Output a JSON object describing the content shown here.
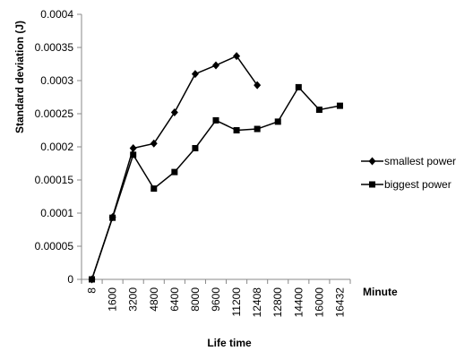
{
  "chart_data": {
    "type": "line",
    "title": "",
    "xlabel": "Life time",
    "ylabel": "Standard deviation (J)",
    "x_unit_label": "Minute",
    "categories": [
      "8",
      "1600",
      "3200",
      "4800",
      "6400",
      "8000",
      "9600",
      "11200",
      "12408",
      "12800",
      "14400",
      "16000",
      "16432"
    ],
    "ylim": [
      0,
      0.0004
    ],
    "yticks": [
      "0",
      "0.00005",
      "0.0001",
      "0.00015",
      "0.0002",
      "0.00025",
      "0.0003",
      "0.00035",
      "0.0004"
    ],
    "grid": false,
    "legend_position": "right",
    "series": [
      {
        "name": "smallest power",
        "marker": "diamond",
        "color": "#000000",
        "values": [
          0,
          9.4e-05,
          0.000198,
          0.000205,
          0.000252,
          0.00031,
          0.000323,
          0.000337,
          0.000293,
          null,
          null,
          null,
          null
        ]
      },
      {
        "name": "biggest power",
        "marker": "square",
        "color": "#000000",
        "values": [
          0,
          9.3e-05,
          0.000188,
          0.000137,
          0.000162,
          0.000198,
          0.00024,
          0.000225,
          0.000227,
          0.000238,
          0.00029,
          0.000256,
          0.000262
        ]
      }
    ]
  }
}
